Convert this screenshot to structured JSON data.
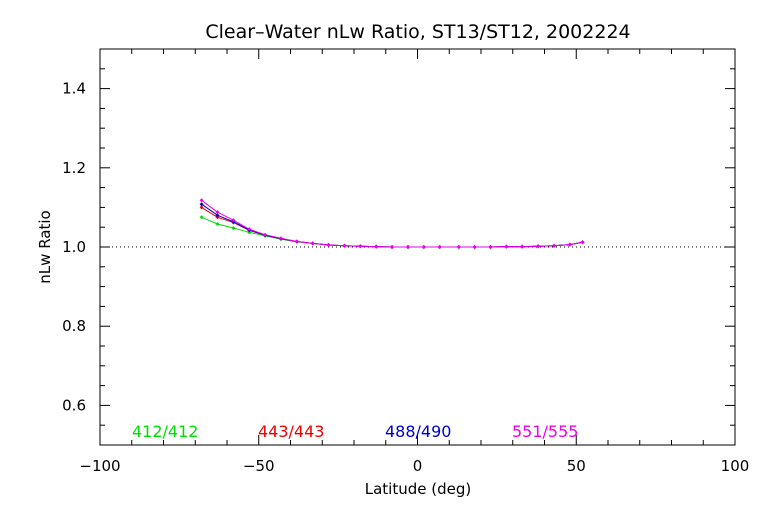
{
  "chart_data": {
    "type": "line",
    "title": "Clear–Water nLw Ratio, ST13/ST12, 2002224",
    "xlabel": "Latitude (deg)",
    "ylabel": "nLw Ratio",
    "xlim": [
      -100,
      100
    ],
    "ylim": [
      0.5,
      1.5
    ],
    "x_ticks": [
      -100,
      -50,
      0,
      50,
      100
    ],
    "x_tick_labels": [
      "−100",
      "−50",
      "0",
      "50",
      "100"
    ],
    "y_ticks": [
      0.6,
      0.8,
      1.0,
      1.2,
      1.4
    ],
    "y_tick_labels": [
      "0.6",
      "0.8",
      "1.0",
      "1.2",
      "1.4"
    ],
    "reference_line": {
      "y": 1.0,
      "style": "dotted"
    },
    "grid": false,
    "legend": {
      "placement": "bottom, inside plot"
    },
    "series": [
      {
        "name": "412/412",
        "color": "#00dd00",
        "points": [
          [
            -68,
            1.075
          ],
          [
            -63,
            1.058
          ],
          [
            -58,
            1.048
          ],
          [
            -53,
            1.037
          ],
          [
            -48,
            1.028
          ],
          [
            -43,
            1.02
          ],
          [
            -38,
            1.013
          ],
          [
            -33,
            1.009
          ],
          [
            -28,
            1.005
          ],
          [
            -23,
            1.003
          ],
          [
            -18,
            1.002
          ],
          [
            -13,
            1.001
          ],
          [
            -8,
            1.0
          ],
          [
            -3,
            1.0
          ],
          [
            2,
            1.0
          ],
          [
            7,
            1.0
          ],
          [
            13,
            1.0
          ],
          [
            18,
            1.0
          ],
          [
            23,
            1.0
          ],
          [
            28,
            1.001
          ],
          [
            33,
            1.001
          ],
          [
            38,
            1.002
          ],
          [
            43,
            1.003
          ],
          [
            48,
            1.006
          ],
          [
            52,
            1.012
          ]
        ]
      },
      {
        "name": "443/443",
        "color": "#ee0000",
        "points": [
          [
            -68,
            1.1
          ],
          [
            -63,
            1.075
          ],
          [
            -58,
            1.062
          ],
          [
            -53,
            1.042
          ],
          [
            -48,
            1.03
          ],
          [
            -43,
            1.021
          ],
          [
            -38,
            1.014
          ],
          [
            -33,
            1.009
          ],
          [
            -28,
            1.005
          ],
          [
            -23,
            1.003
          ],
          [
            -18,
            1.002
          ],
          [
            -13,
            1.001
          ],
          [
            -8,
            1.0
          ],
          [
            -3,
            1.0
          ],
          [
            2,
            1.0
          ],
          [
            7,
            1.0
          ],
          [
            13,
            1.0
          ],
          [
            18,
            1.0
          ],
          [
            23,
            1.0
          ],
          [
            28,
            1.001
          ],
          [
            33,
            1.001
          ],
          [
            38,
            1.002
          ],
          [
            43,
            1.003
          ],
          [
            48,
            1.006
          ],
          [
            52,
            1.012
          ]
        ]
      },
      {
        "name": "488/490",
        "color": "#0000cc",
        "points": [
          [
            -68,
            1.108
          ],
          [
            -63,
            1.08
          ],
          [
            -58,
            1.064
          ],
          [
            -53,
            1.043
          ],
          [
            -48,
            1.03
          ],
          [
            -43,
            1.021
          ],
          [
            -38,
            1.014
          ],
          [
            -33,
            1.009
          ],
          [
            -28,
            1.005
          ],
          [
            -23,
            1.003
          ],
          [
            -18,
            1.002
          ],
          [
            -13,
            1.001
          ],
          [
            -8,
            1.0
          ],
          [
            -3,
            1.0
          ],
          [
            2,
            1.0
          ],
          [
            7,
            1.0
          ],
          [
            13,
            1.0
          ],
          [
            18,
            1.0
          ],
          [
            23,
            1.0
          ],
          [
            28,
            1.001
          ],
          [
            33,
            1.001
          ],
          [
            38,
            1.002
          ],
          [
            43,
            1.003
          ],
          [
            48,
            1.006
          ],
          [
            52,
            1.012
          ]
        ]
      },
      {
        "name": "551/555",
        "color": "#ee00ee",
        "points": [
          [
            -68,
            1.118
          ],
          [
            -63,
            1.088
          ],
          [
            -58,
            1.068
          ],
          [
            -53,
            1.045
          ],
          [
            -48,
            1.031
          ],
          [
            -43,
            1.022
          ],
          [
            -38,
            1.014
          ],
          [
            -33,
            1.009
          ],
          [
            -28,
            1.005
          ],
          [
            -23,
            1.003
          ],
          [
            -18,
            1.002
          ],
          [
            -13,
            1.001
          ],
          [
            -8,
            1.0
          ],
          [
            -3,
            1.0
          ],
          [
            2,
            1.0
          ],
          [
            7,
            1.0
          ],
          [
            13,
            1.0
          ],
          [
            18,
            1.0
          ],
          [
            23,
            1.0
          ],
          [
            28,
            1.001
          ],
          [
            33,
            1.001
          ],
          [
            38,
            1.002
          ],
          [
            43,
            1.003
          ],
          [
            48,
            1.006
          ],
          [
            52,
            1.012
          ]
        ]
      }
    ]
  }
}
